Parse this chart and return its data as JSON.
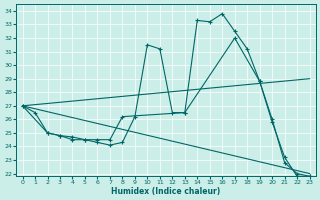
{
  "xlabel": "Humidex (Indice chaleur)",
  "bg_color": "#cceee8",
  "line_color": "#006666",
  "grid_color": "#b0d8d0",
  "ylim": [
    21.8,
    34.5
  ],
  "xlim": [
    -0.5,
    23.5
  ],
  "yticks": [
    22,
    23,
    24,
    25,
    26,
    27,
    28,
    29,
    30,
    31,
    32,
    33,
    34
  ],
  "xticks": [
    0,
    1,
    2,
    3,
    4,
    5,
    6,
    7,
    8,
    9,
    10,
    11,
    12,
    13,
    14,
    15,
    16,
    17,
    18,
    19,
    20,
    21,
    22,
    23
  ],
  "line1_x": [
    0,
    1,
    2,
    3,
    4,
    5,
    6,
    7,
    8,
    9,
    10,
    11,
    12,
    13,
    14,
    15,
    16,
    17,
    18,
    19,
    20,
    21,
    22,
    23
  ],
  "line1_y": [
    27.0,
    26.5,
    25.0,
    24.8,
    24.5,
    24.5,
    24.3,
    24.1,
    24.3,
    26.2,
    31.5,
    31.2,
    26.5,
    26.5,
    33.3,
    33.2,
    33.8,
    32.5,
    31.2,
    28.8,
    25.8,
    23.2,
    21.8,
    21.8
  ],
  "line2_x": [
    0,
    2,
    3,
    4,
    5,
    6,
    7,
    8,
    13,
    17,
    19,
    20,
    21,
    22,
    23
  ],
  "line2_y": [
    27.0,
    25.0,
    24.8,
    24.7,
    24.5,
    24.5,
    24.5,
    26.2,
    26.5,
    32.0,
    28.8,
    26.0,
    22.8,
    22.0,
    21.8
  ],
  "line3_x": [
    0,
    23
  ],
  "line3_y": [
    27.0,
    29.0
  ],
  "line4_x": [
    0,
    23
  ],
  "line4_y": [
    27.0,
    22.0
  ]
}
